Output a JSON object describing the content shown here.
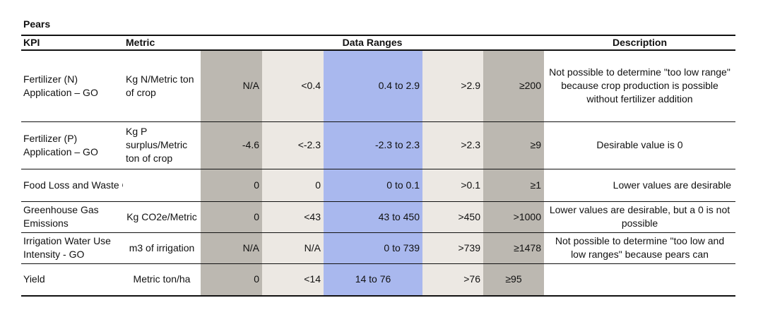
{
  "title": "Pears",
  "headers": {
    "kpi": "KPI",
    "metric": "Metric",
    "ranges": "Data Ranges",
    "description": "Description"
  },
  "rows": [
    {
      "kpi": "Fertilizer (N) Application – GO",
      "metric": "Kg N/Metric ton of crop",
      "r1": "N/A",
      "r2": "<0.4",
      "r3": "0.4 to 2.9",
      "r4": ">2.9",
      "r5": "≥200",
      "description": "Not possible to determine \"too low range\" because crop production is possible without fertilizer addition"
    },
    {
      "kpi": "Fertilizer (P) Application – GO",
      "metric": "Kg P surplus/Metric ton of crop",
      "r1": "-4.6",
      "r2": "<-2.3",
      "r3": "-2.3 to 2.3",
      "r4": ">2.3",
      "r5": "≥9",
      "description": "Desirable value is 0"
    },
    {
      "kpi": "Food Loss and Waste Generation -",
      "metric": "",
      "r1": "0",
      "r2": "0",
      "r3": "0 to 0.1",
      "r4": ">0.1",
      "r5": "≥1",
      "description": "Lower values are desirable"
    },
    {
      "kpi": "Greenhouse Gas Emissions",
      "metric": "Kg CO2e/Metric",
      "r1": "0",
      "r2": "<43",
      "r3": "43 to 450",
      "r4": ">450",
      "r5": ">1000",
      "description": "Lower values are desirable, but a 0 is not possible"
    },
    {
      "kpi": "Irrigation Water Use Intensity - GO",
      "metric": "m3 of irrigation",
      "r1": "N/A",
      "r2": "N/A",
      "r3": "0 to 739",
      "r4": ">739",
      "r5": "≥1478",
      "description": "Not possible to determine \"too low and low ranges\" because pears can"
    },
    {
      "kpi": "Yield",
      "metric": "Metric ton/ha",
      "r1": "0",
      "r2": "<14",
      "r3": "14  to 76",
      "r4": ">76",
      "r5": "≥95",
      "description": ""
    }
  ]
}
